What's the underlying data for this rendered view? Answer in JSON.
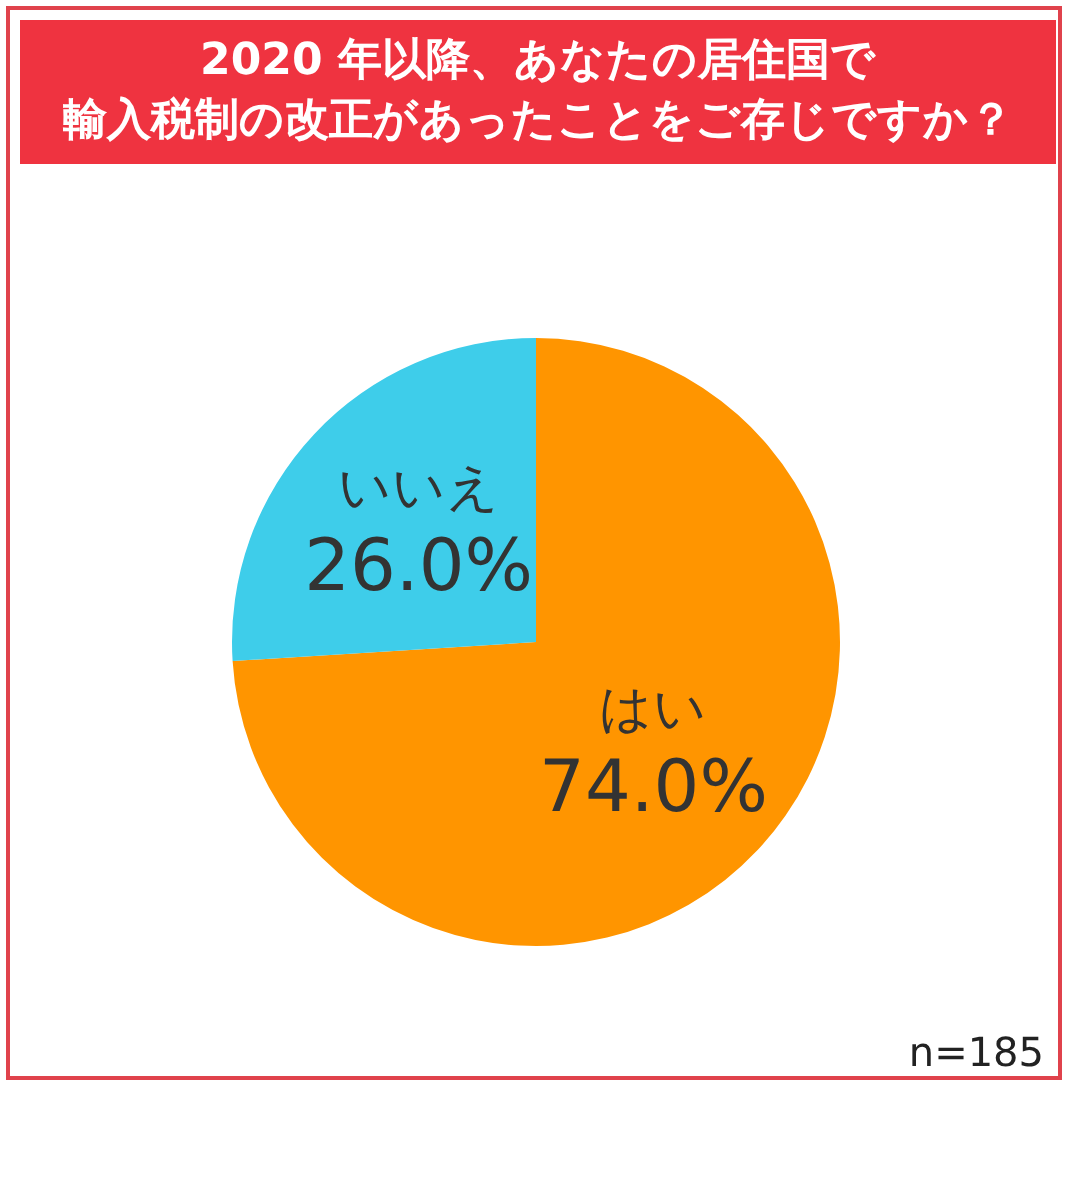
{
  "chart_data": {
    "type": "pie",
    "title": "2020 年以降、あなたの居住国で輸入税制の改正があったことをご存じですか？",
    "categories": [
      "はい",
      "いいえ"
    ],
    "values": [
      74,
      26
    ],
    "colors": [
      "#ff9500",
      "#3ecdea"
    ],
    "value_labels": [
      "74.0%",
      "26.0%"
    ],
    "annotations": [
      "n=185"
    ],
    "legend": false
  }
}
